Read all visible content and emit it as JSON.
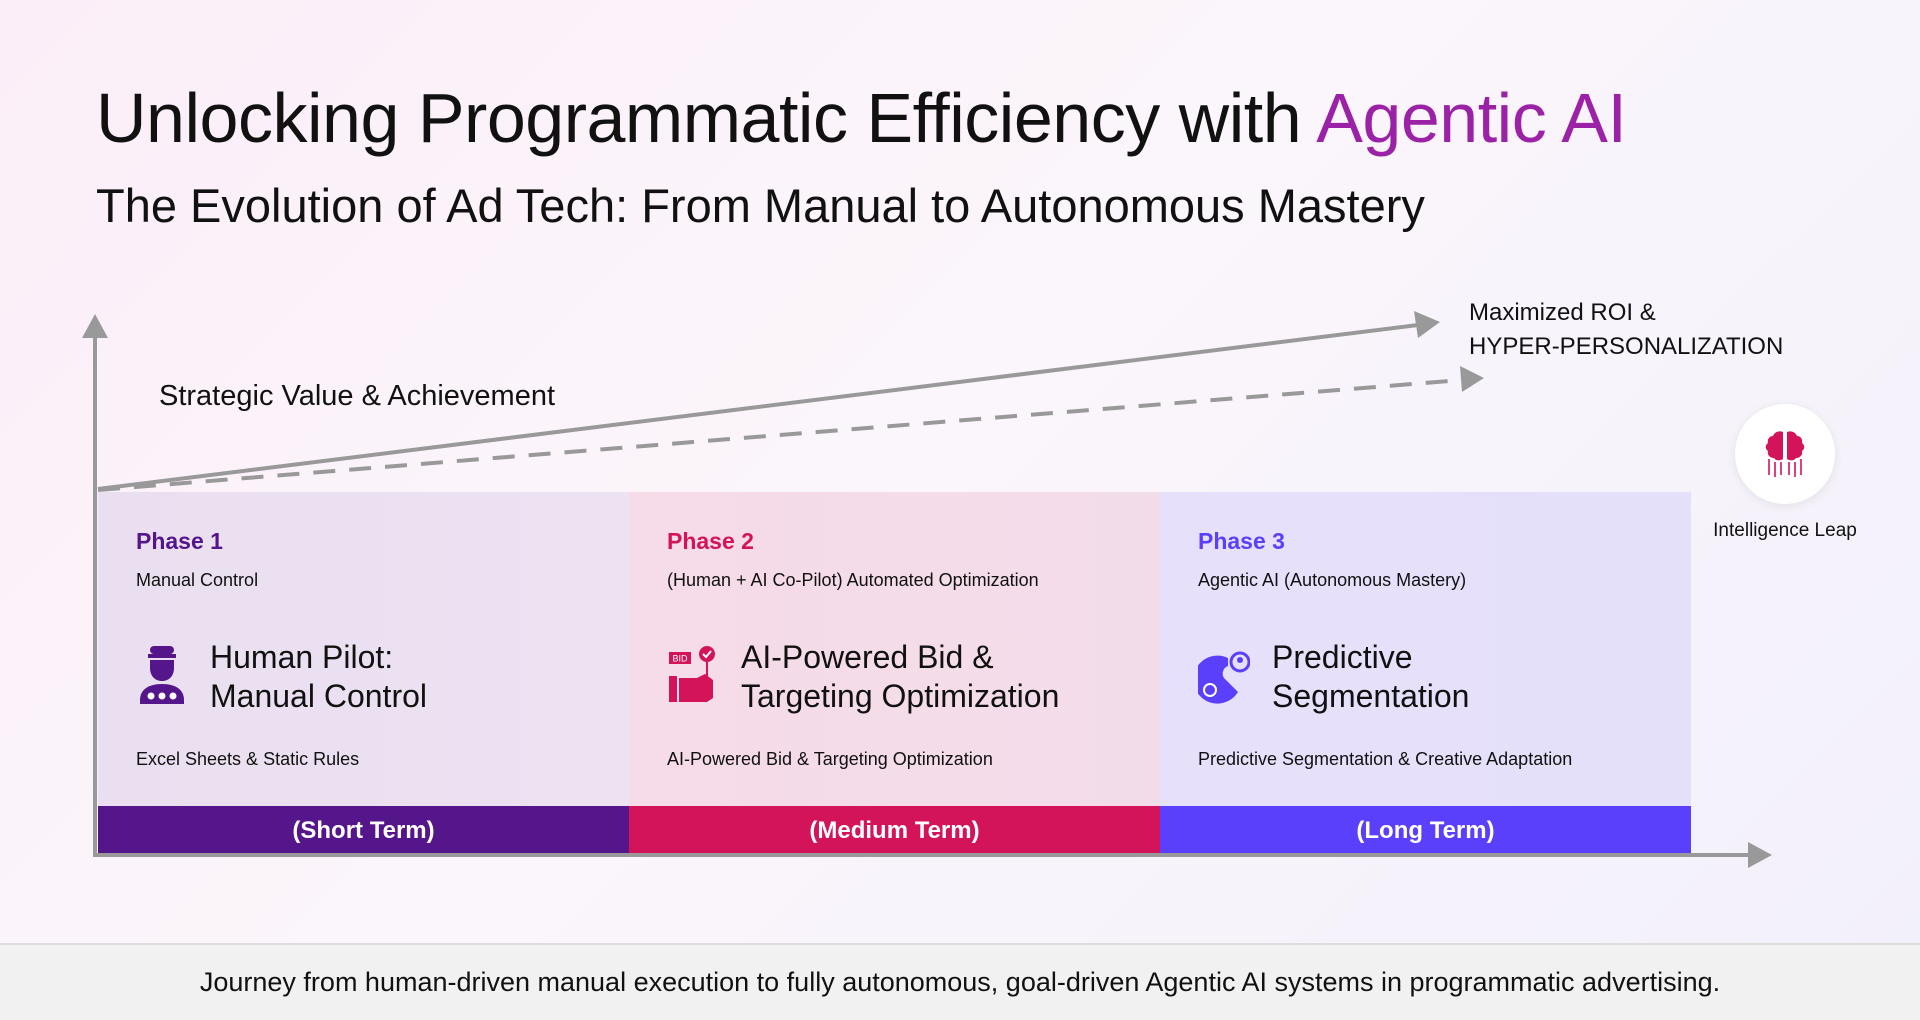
{
  "title": {
    "main": "Unlocking Programmatic Efficiency with ",
    "accent": "Agentic AI",
    "accent_color": "#9b22a6"
  },
  "subtitle": "The Evolution of Ad Tech: From Manual to Autonomous Mastery",
  "y_axis_label": "Strategic Value & Achievement",
  "goal": {
    "line1": "Maximized ROI &",
    "line2": "HYPER-PERSONALIZATION"
  },
  "phases": [
    {
      "label": "Phase 1",
      "subtitle": "Manual Control",
      "heading1": "Human Pilot:",
      "heading2": "Manual Control",
      "description": "Excel Sheets & Static Rules",
      "term": "(Short Term)",
      "color": "#54168a",
      "icon": "human-pilot-icon"
    },
    {
      "label": "Phase 2",
      "subtitle": "(Human + AI Co-Pilot) Automated Optimization",
      "heading1": "AI-Powered Bid &",
      "heading2": "Targeting Optimization",
      "description": "AI-Powered Bid & Targeting Optimization",
      "term": "(Medium Term)",
      "color": "#d4145a",
      "icon": "bid-hand-icon",
      "icon_text": "BID"
    },
    {
      "label": "Phase 3",
      "subtitle": "Agentic AI (Autonomous Mastery)",
      "heading1": "Predictive",
      "heading2": "Segmentation",
      "description": "Predictive Segmentation & Creative Adaptation",
      "term": "(Long Term)",
      "color": "#5a3ffb",
      "icon": "segmentation-icon"
    }
  ],
  "leap": {
    "label": "Intelligence Leap",
    "icon": "brain-icon",
    "color": "#d4145a"
  },
  "footer": "Journey from human-driven manual execution to fully autonomous, goal-driven Agentic AI systems in programmatic advertising."
}
